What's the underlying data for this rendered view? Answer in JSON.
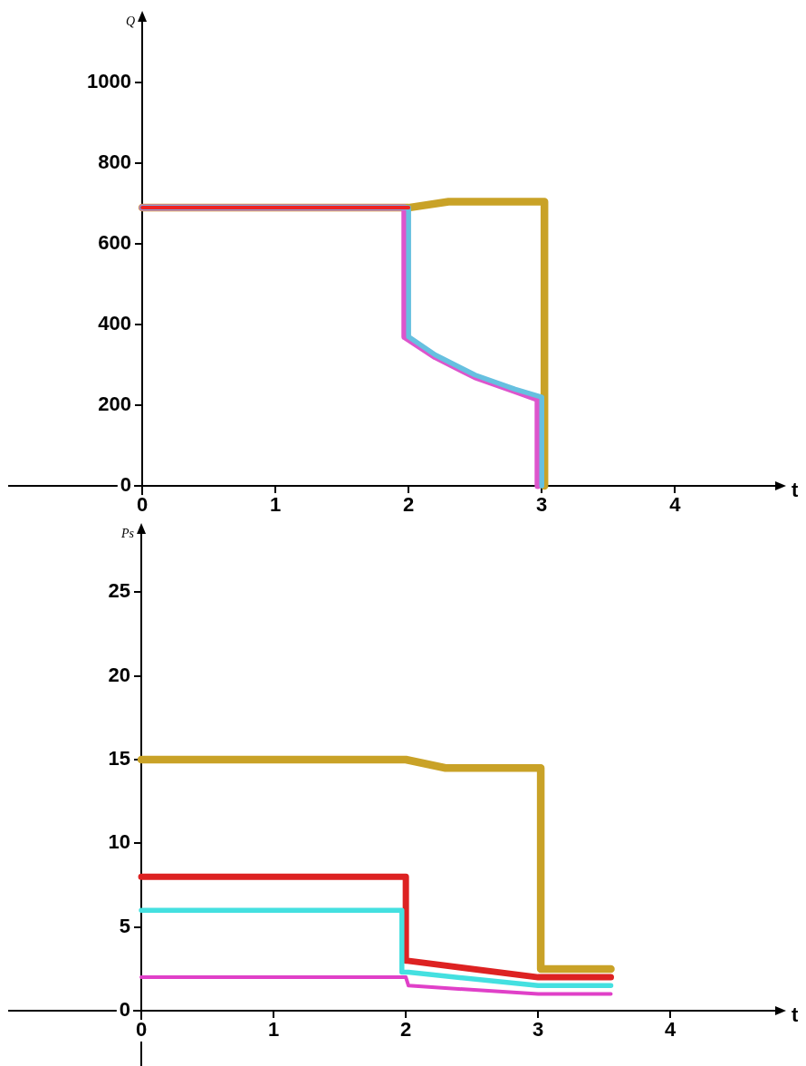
{
  "chart_data": [
    {
      "type": "line",
      "xlabel": "t",
      "ylabel": "Q",
      "xlim": [
        -1,
        4.78
      ],
      "ylim": [
        -65,
        1160
      ],
      "xticks": [
        0,
        1,
        2,
        3,
        4
      ],
      "yticks": [
        0,
        200,
        400,
        600,
        800,
        1000
      ],
      "grid": false,
      "legend": false,
      "marker": "none",
      "line_style": "solid",
      "series": [
        {
          "color": "#c9a227",
          "x": [
            0,
            2,
            2.3,
            3.02,
            3.02
          ],
          "values": [
            690,
            690,
            705,
            705,
            0
          ]
        },
        {
          "color": "#dd55cc",
          "x": [
            0,
            1.97,
            1.97,
            2.2,
            2.5,
            2.8,
            2.97,
            2.97
          ],
          "values": [
            690,
            690,
            370,
            320,
            270,
            235,
            215,
            0
          ]
        },
        {
          "color": "#66c0e0",
          "x": [
            0,
            2,
            2,
            2.2,
            2.5,
            2.8,
            3,
            3
          ],
          "values": [
            690,
            690,
            370,
            325,
            275,
            240,
            220,
            0
          ]
        },
        {
          "color": "#ee2222",
          "x": [
            0,
            2
          ],
          "values": [
            690,
            690
          ]
        }
      ]
    },
    {
      "type": "line",
      "xlabel": "t",
      "ylabel": "Ps",
      "xlim": [
        -1,
        4.82
      ],
      "ylim": [
        -3.3,
        28.7
      ],
      "xticks": [
        0,
        1,
        2,
        3,
        4
      ],
      "yticks": [
        0,
        5,
        10,
        15,
        20,
        25
      ],
      "grid": false,
      "legend": false,
      "marker": "none",
      "line_style": "solid",
      "series": [
        {
          "color": "#c9a227",
          "x": [
            0,
            2,
            2.3,
            3.02,
            3.02,
            3.55
          ],
          "values": [
            15,
            15,
            14.5,
            14.5,
            2.5,
            2.5
          ]
        },
        {
          "color": "#dd2222",
          "x": [
            0,
            2,
            2,
            3,
            3.55
          ],
          "values": [
            8,
            8,
            3,
            2,
            2
          ]
        },
        {
          "color": "#44e0e0",
          "x": [
            0,
            1.97,
            1.97,
            2.02,
            3,
            3.55
          ],
          "values": [
            6,
            6,
            2.3,
            2.3,
            1.5,
            1.5
          ]
        },
        {
          "color": "#e040c8",
          "x": [
            0,
            2,
            2.02,
            3,
            3.55
          ],
          "values": [
            2,
            2,
            1.5,
            1,
            1
          ]
        }
      ]
    }
  ]
}
